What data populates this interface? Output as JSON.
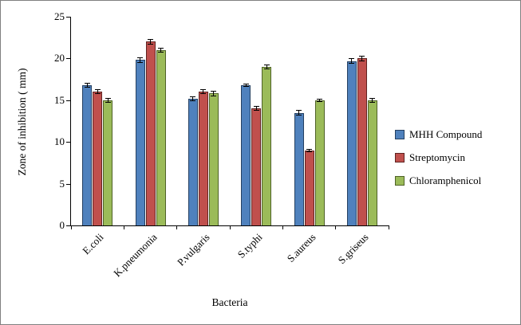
{
  "chart_data": {
    "type": "bar",
    "title": "",
    "xlabel": "Bacteria",
    "ylabel": "Zone of inhibition ( mm)",
    "categories": [
      "E.coli",
      "K.pneumonia",
      "P.vulgaris",
      "S.typhi",
      "S.aureus",
      "S.griseus"
    ],
    "series": [
      {
        "name": "MHH Compound",
        "color": "#4F81BD",
        "border_color": "#254061",
        "values": [
          16.8,
          19.8,
          15.2,
          16.8,
          13.5,
          19.7
        ],
        "errors": [
          0.3,
          0.3,
          0.3,
          0.2,
          0.3,
          0.3
        ]
      },
      {
        "name": "Streptomycin",
        "color": "#C0504D",
        "border_color": "#5F2321",
        "values": [
          16,
          22,
          16,
          14,
          9,
          20
        ],
        "errors": [
          0.3,
          0.3,
          0.3,
          0.3,
          0.2,
          0.3
        ]
      },
      {
        "name": "Chloramphenicol",
        "color": "#9BBB59",
        "border_color": "#4F6228",
        "values": [
          15,
          21,
          15.8,
          19,
          15,
          15
        ],
        "errors": [
          0.3,
          0.3,
          0.3,
          0.3,
          0.2,
          0.3
        ]
      }
    ],
    "ylim": [
      0,
      25
    ],
    "yticks": [
      0,
      5,
      10,
      15,
      20,
      25
    ],
    "grid": false,
    "legend_position": "right"
  }
}
